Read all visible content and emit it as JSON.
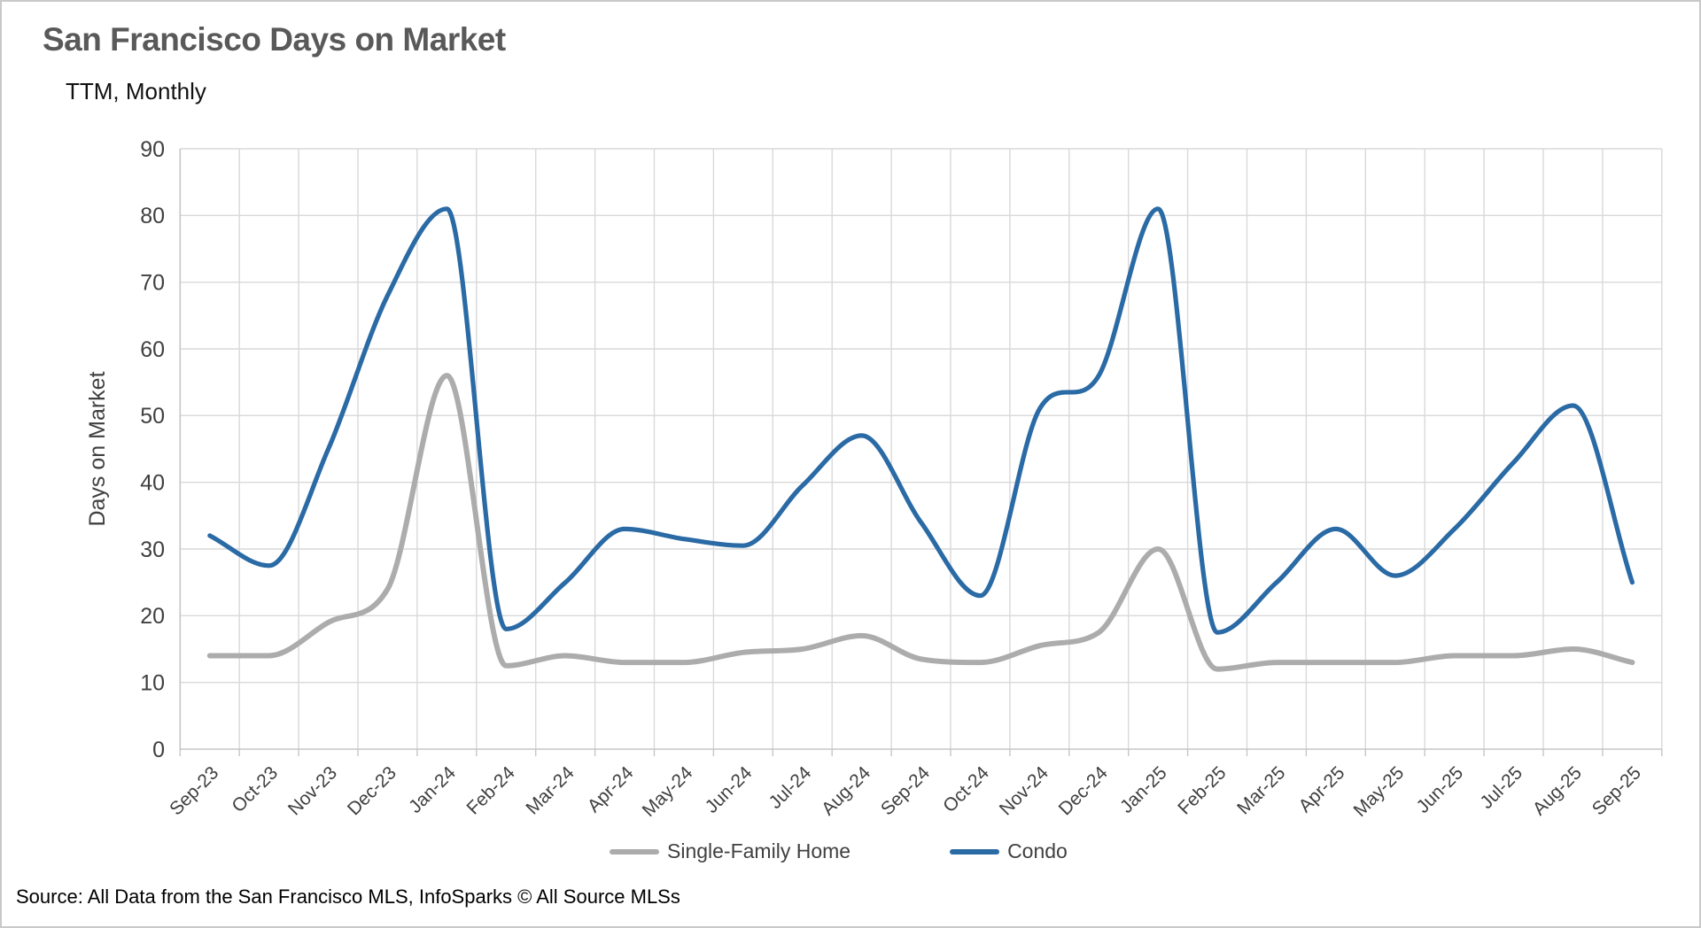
{
  "header": {
    "title": "San Francisco Days on Market",
    "subtitle": "TTM, Monthly"
  },
  "source_note": "Source: All Data from the San Francisco MLS, InfoSparks © All Source MLSs",
  "chart_data": {
    "type": "line",
    "title": "San Francisco Days on Market",
    "subtitle": "TTM, Monthly",
    "xlabel": "",
    "ylabel": "Days on Market",
    "ylim": [
      0,
      90
    ],
    "ytick_step": 10,
    "grid": true,
    "smooth": true,
    "legend_position": "bottom",
    "categories": [
      "Sep-23",
      "Oct-23",
      "Nov-23",
      "Dec-23",
      "Jan-24",
      "Feb-24",
      "Mar-24",
      "Apr-24",
      "May-24",
      "Jun-24",
      "Jul-24",
      "Aug-24",
      "Sep-24",
      "Oct-24",
      "Nov-24",
      "Dec-24",
      "Jan-25",
      "Feb-25",
      "Mar-25",
      "Apr-25",
      "May-25",
      "Jun-25",
      "Jul-25",
      "Aug-25",
      "Sep-25"
    ],
    "series": [
      {
        "name": "Single-Family Home",
        "color": "#acacac",
        "values": [
          14,
          14,
          19,
          24,
          56,
          12.5,
          14,
          13,
          13,
          14.5,
          15,
          17,
          13.5,
          13,
          15.5,
          17.5,
          30,
          12,
          13,
          13,
          13,
          14,
          14,
          15,
          13
        ]
      },
      {
        "name": "Condo",
        "color": "#2a6aa5",
        "values": [
          32,
          27.5,
          45,
          68,
          81,
          18,
          25,
          33,
          31.5,
          30.5,
          39.5,
          47,
          34,
          23,
          51,
          56,
          81,
          17.5,
          25,
          33,
          26,
          33,
          43,
          51.5,
          25
        ]
      }
    ],
    "axis_text_color": "#404040",
    "gridline_color": "#d9d9d9",
    "axis_line_color": "#c6c6c6"
  }
}
